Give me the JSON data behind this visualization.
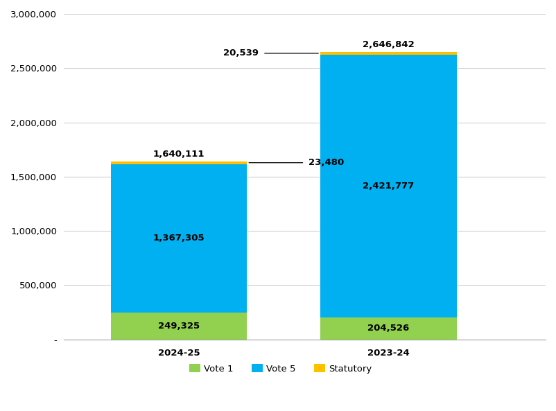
{
  "categories": [
    "2024-25",
    "2023-24"
  ],
  "vote1": [
    249325,
    204526
  ],
  "vote5": [
    1367305,
    2421777
  ],
  "statutory": [
    23480,
    20539
  ],
  "totals": [
    1640111,
    2646842
  ],
  "vote1_color": "#92d050",
  "vote5_color": "#00b0f0",
  "statutory_color": "#ffc000",
  "vote1_label": "Vote 1",
  "vote5_label": "Vote 5",
  "statutory_label": "Statutory",
  "ylim": [
    0,
    3000000
  ],
  "yticks": [
    0,
    500000,
    1000000,
    1500000,
    2000000,
    2500000,
    3000000
  ],
  "ytick_labels": [
    "-",
    "500,000",
    "1,000,000",
    "1,500,000",
    "2,000,000",
    "2,500,000",
    "3,000,000"
  ],
  "bar_width": 0.65,
  "background_color": "#ffffff",
  "grid_color": "#c8c8c8",
  "label_fontsize": 9.5,
  "tick_fontsize": 9.5,
  "legend_fontsize": 9.5,
  "text_color": "#000000"
}
